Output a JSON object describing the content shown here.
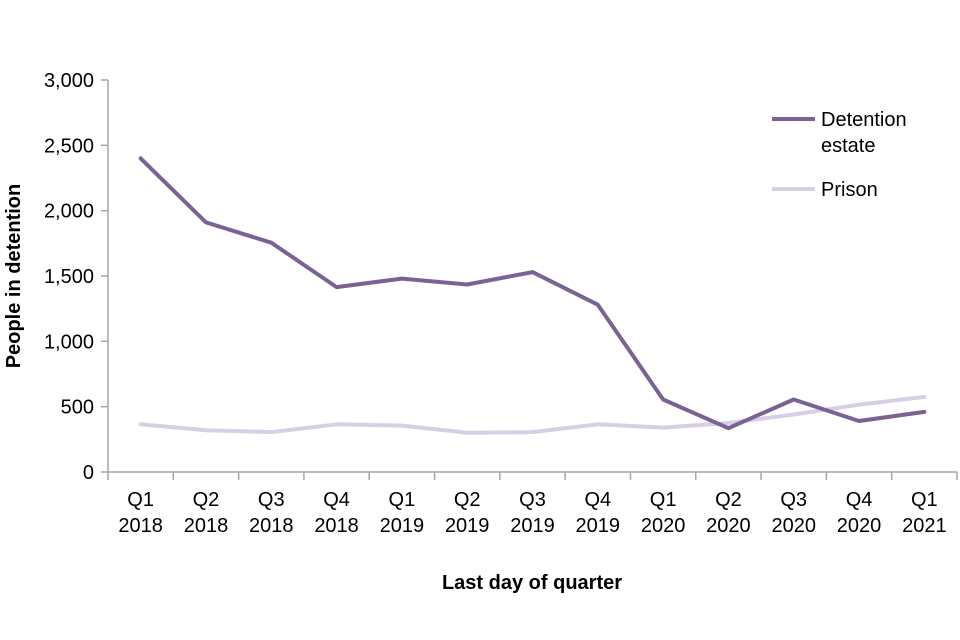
{
  "chart_data": {
    "type": "line",
    "title": "",
    "xlabel": "Last day of quarter",
    "ylabel": "People in detention",
    "ylim": [
      0,
      3000
    ],
    "y_ticks": [
      0,
      500,
      1000,
      1500,
      2000,
      2500,
      3000
    ],
    "y_tick_labels": [
      "0",
      "500",
      "1,000",
      "1,500",
      "2,000",
      "2,500",
      "3,000"
    ],
    "categories": [
      [
        "Q1",
        "2018"
      ],
      [
        "Q2",
        "2018"
      ],
      [
        "Q3",
        "2018"
      ],
      [
        "Q4",
        "2018"
      ],
      [
        "Q1",
        "2019"
      ],
      [
        "Q2",
        "2019"
      ],
      [
        "Q3",
        "2019"
      ],
      [
        "Q4",
        "2019"
      ],
      [
        "Q1",
        "2020"
      ],
      [
        "Q2",
        "2020"
      ],
      [
        "Q3",
        "2020"
      ],
      [
        "Q4",
        "2020"
      ],
      [
        "Q1",
        "2021"
      ]
    ],
    "series": [
      {
        "name": "Detention estate",
        "legend_lines": [
          "Detention",
          "estate"
        ],
        "color": "#7a6394",
        "values": [
          2400,
          1910,
          1755,
          1415,
          1480,
          1435,
          1530,
          1280,
          555,
          335,
          555,
          390,
          460
        ]
      },
      {
        "name": "Prison",
        "legend_lines": [
          "Prison"
        ],
        "color": "#d9cfe4",
        "values": [
          365,
          320,
          305,
          365,
          355,
          300,
          305,
          365,
          340,
          375,
          440,
          515,
          575
        ]
      }
    ],
    "legend_position": "top-right"
  }
}
